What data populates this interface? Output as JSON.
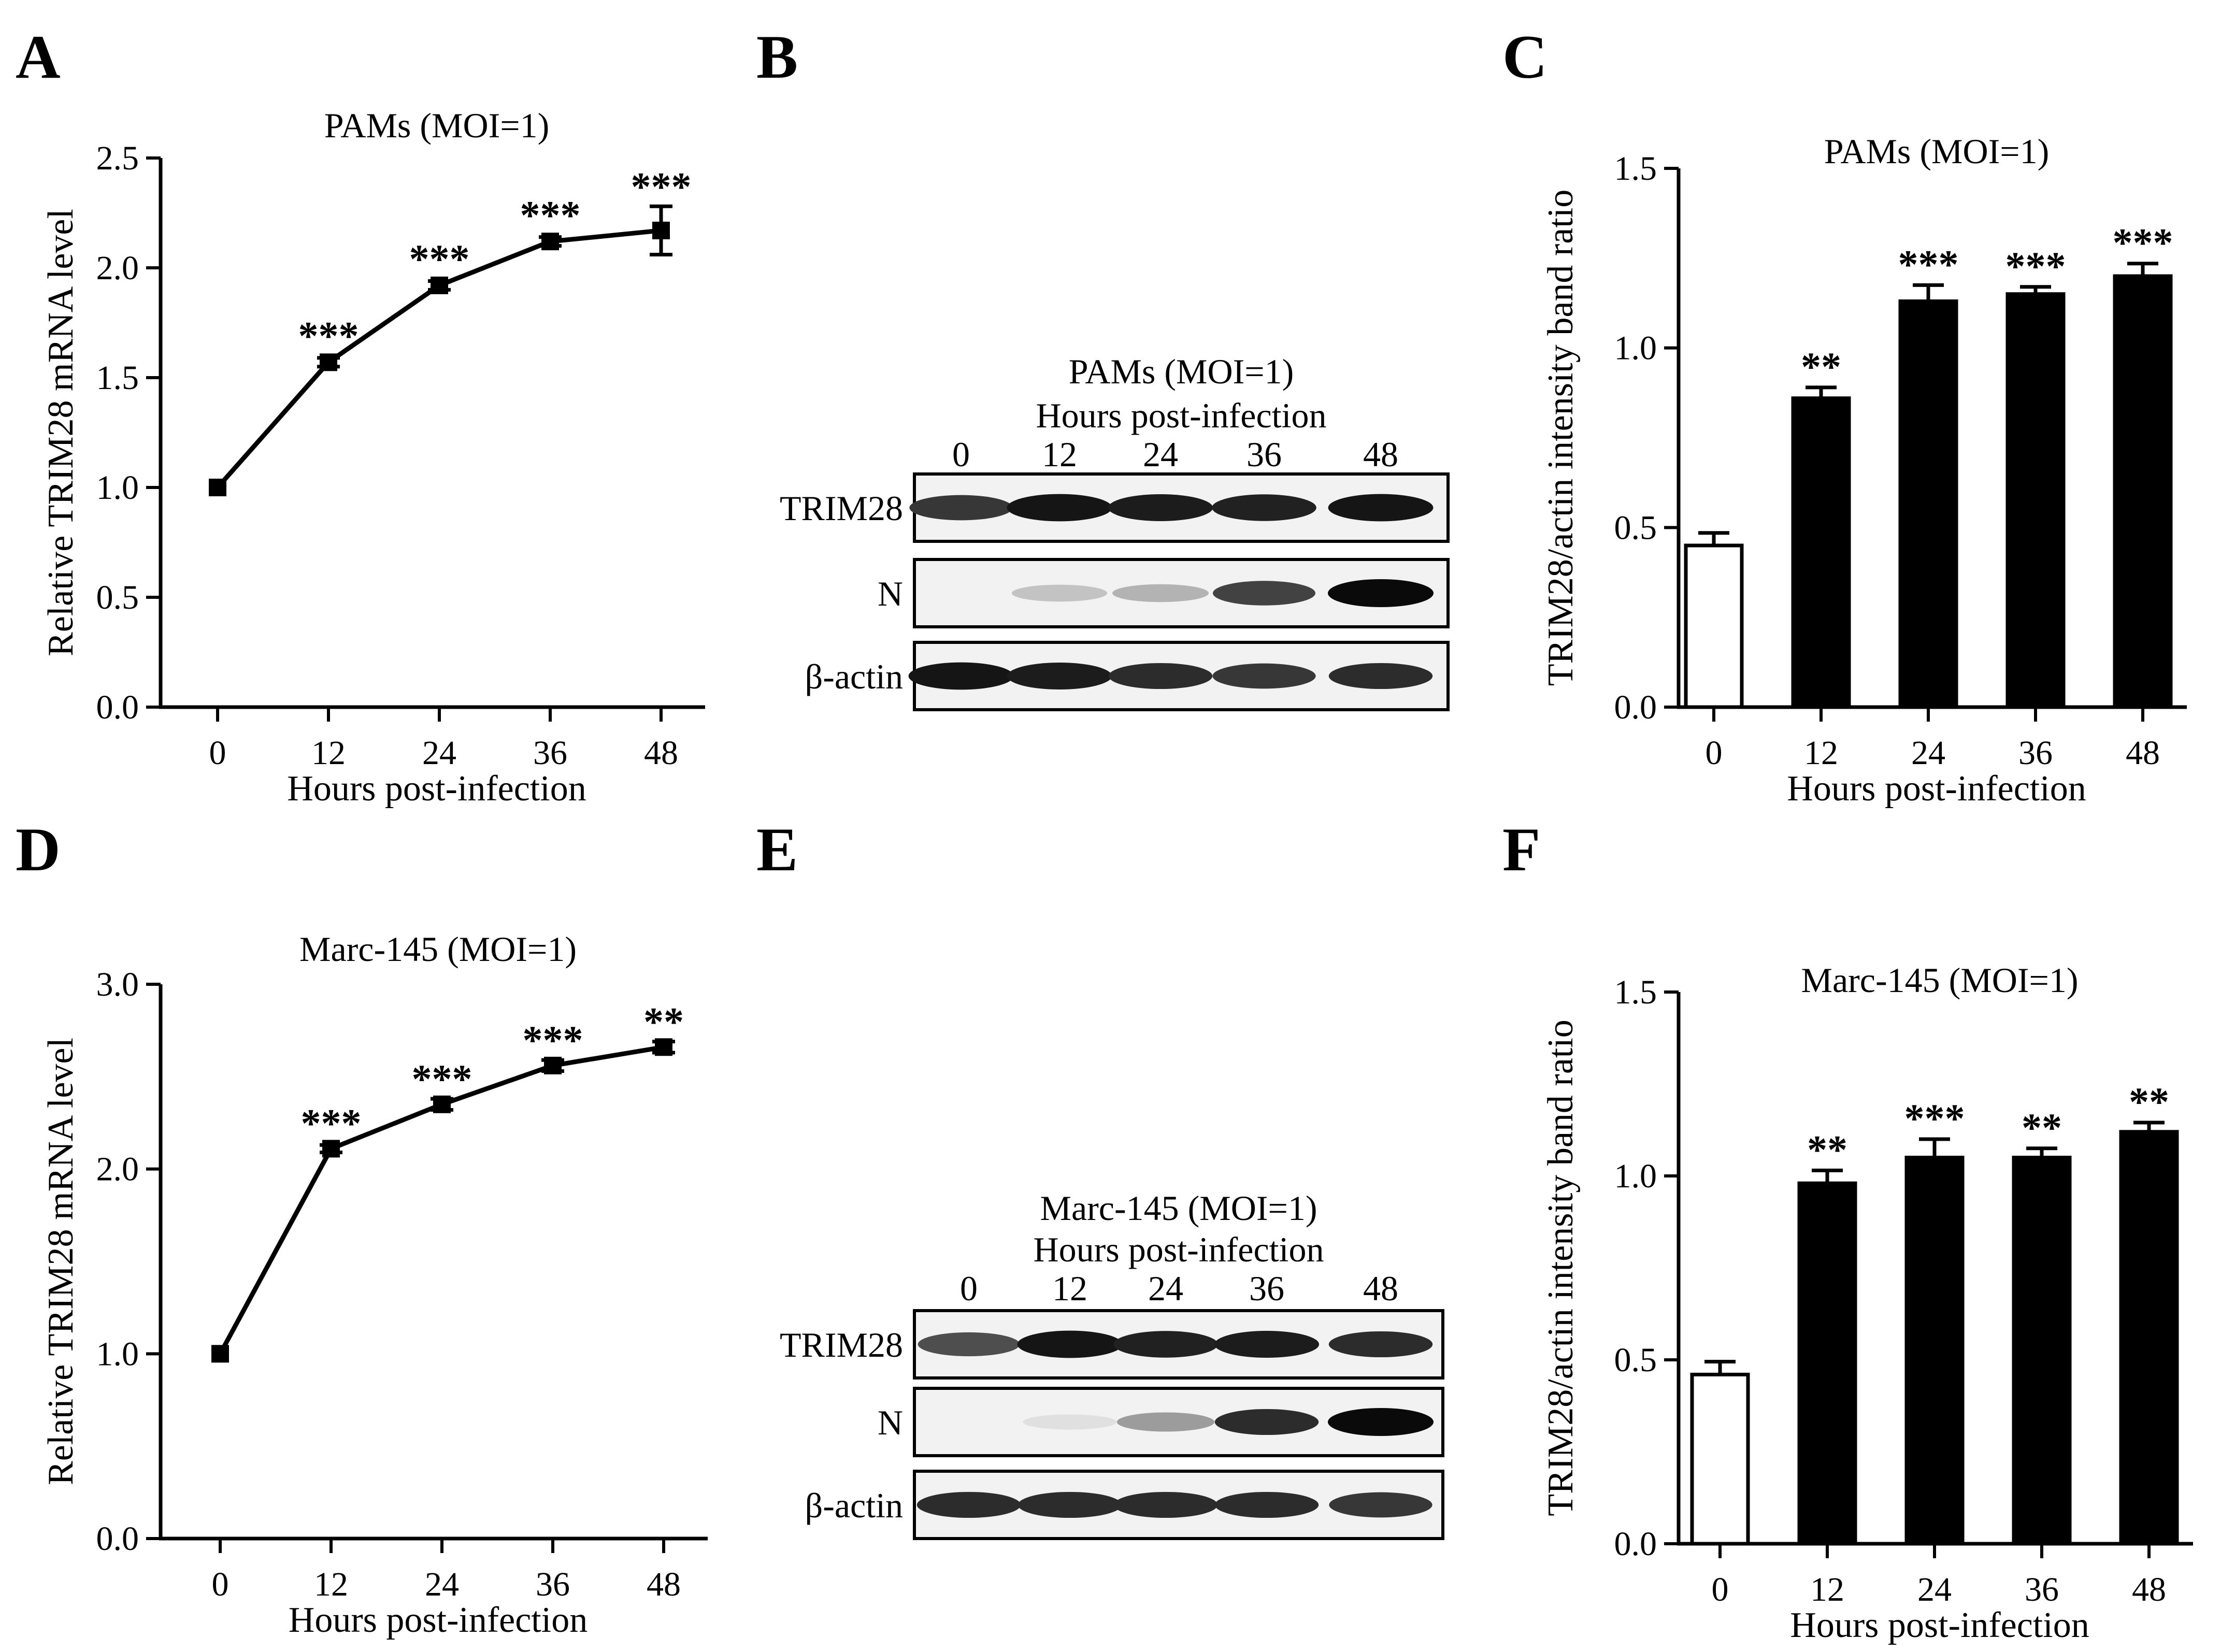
{
  "figure": {
    "panels": [
      "A",
      "B",
      "C",
      "D",
      "E",
      "F"
    ]
  },
  "chart_data": [
    {
      "id": "A",
      "type": "line",
      "title": "PAMs (MOI=1)",
      "xlabel": "Hours post-infection",
      "ylabel": "Relative TRIM28 mRNA level",
      "categories": [
        "0",
        "12",
        "24",
        "36",
        "48"
      ],
      "values": [
        1.0,
        1.57,
        1.92,
        2.12,
        2.17
      ],
      "errors": [
        0.0,
        0.02,
        0.02,
        0.02,
        0.11
      ],
      "significance": [
        "",
        "***",
        "***",
        "***",
        "***"
      ],
      "ylim": [
        0,
        2.5
      ],
      "yticks": [
        "0.0",
        "0.5",
        "1.0",
        "1.5",
        "2.0",
        "2.5"
      ]
    },
    {
      "id": "C",
      "type": "bar",
      "title": "PAMs (MOI=1)",
      "xlabel": "Hours post-infection",
      "ylabel": "TRIM28/actin intensity band ratio",
      "categories": [
        "0",
        "12",
        "24",
        "36",
        "48"
      ],
      "values": [
        0.45,
        0.86,
        1.13,
        1.15,
        1.2
      ],
      "errors": [
        0.035,
        0.03,
        0.045,
        0.02,
        0.035
      ],
      "significance": [
        "",
        "**",
        "***",
        "***",
        "***"
      ],
      "fills": [
        "#ffffff",
        "#000000",
        "#000000",
        "#000000",
        "#000000"
      ],
      "ylim": [
        0,
        1.5
      ],
      "yticks": [
        "0.0",
        "0.5",
        "1.0",
        "1.5"
      ]
    },
    {
      "id": "D",
      "type": "line",
      "title": "Marc-145 (MOI=1)",
      "xlabel": "Hours post-infection",
      "ylabel": "Relative TRIM28 mRNA level",
      "categories": [
        "0",
        "12",
        "24",
        "36",
        "48"
      ],
      "values": [
        1.0,
        2.11,
        2.35,
        2.56,
        2.66
      ],
      "errors": [
        0.0,
        0.02,
        0.03,
        0.03,
        0.03
      ],
      "significance": [
        "",
        "***",
        "***",
        "***",
        "**"
      ],
      "ylim": [
        0,
        3.0
      ],
      "yticks": [
        "0.0",
        "1.0",
        "2.0",
        "3.0"
      ]
    },
    {
      "id": "F",
      "type": "bar",
      "title": "Marc-145 (MOI=1)",
      "xlabel": "Hours post-infection",
      "ylabel": "TRIM28/actin intensity band ratio",
      "categories": [
        "0",
        "12",
        "24",
        "36",
        "48"
      ],
      "values": [
        0.46,
        0.98,
        1.05,
        1.05,
        1.12
      ],
      "errors": [
        0.035,
        0.035,
        0.05,
        0.025,
        0.025
      ],
      "significance": [
        "",
        "**",
        "***",
        "**",
        "**"
      ],
      "fills": [
        "#ffffff",
        "#000000",
        "#000000",
        "#000000",
        "#000000"
      ],
      "ylim": [
        0,
        1.5
      ],
      "yticks": [
        "0.0",
        "0.5",
        "1.0",
        "1.5"
      ]
    }
  ],
  "blots": [
    {
      "id": "B",
      "title": "PAMs (MOI=1)",
      "subtitle": "Hours post-infection",
      "lanes": [
        "0",
        "12",
        "24",
        "36",
        "48"
      ],
      "rows": [
        {
          "label": "TRIM28",
          "intensity": [
            0.8,
            0.95,
            0.92,
            0.9,
            0.95
          ]
        },
        {
          "label": "N",
          "intensity": [
            0.0,
            0.18,
            0.25,
            0.75,
            1.0
          ]
        },
        {
          "label": "β-actin",
          "intensity": [
            0.95,
            0.92,
            0.85,
            0.8,
            0.85
          ]
        }
      ]
    },
    {
      "id": "E",
      "title": "Marc-145 (MOI=1)",
      "subtitle": "Hours post-infection",
      "lanes": [
        "0",
        "12",
        "24",
        "36",
        "48"
      ],
      "rows": [
        {
          "label": "TRIM28",
          "intensity": [
            0.7,
            0.95,
            0.9,
            0.92,
            0.85
          ]
        },
        {
          "label": "N",
          "intensity": [
            0.0,
            0.05,
            0.35,
            0.85,
            1.0
          ]
        },
        {
          "label": "β-actin",
          "intensity": [
            0.85,
            0.85,
            0.85,
            0.85,
            0.8
          ]
        }
      ]
    }
  ]
}
